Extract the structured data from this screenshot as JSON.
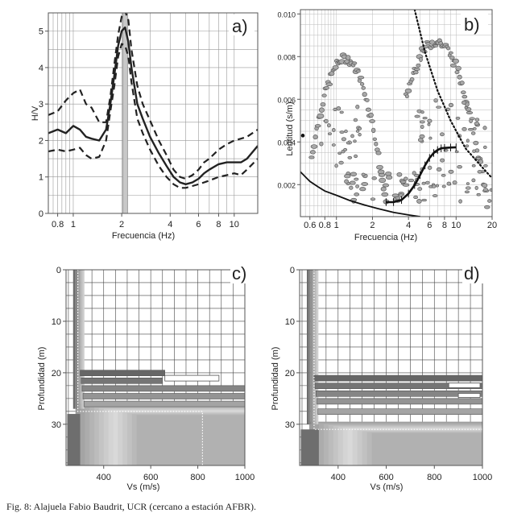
{
  "caption": "Fig. 8: Alajuela Fabio Baudrit, UCR (cercano a estación AFBR).",
  "colors": {
    "curve": "#222222",
    "speckle_fill": "#a8a8a8",
    "speckle_edge": "#5a5a5a",
    "profile_dark": "#6e6e6e",
    "profile_light": "#d8d8d8"
  },
  "chart_data": [
    {
      "panel": "a)",
      "type": "line",
      "xlabel": "Frecuencia (Hz)",
      "ylabel": "H/V",
      "xscale": "log",
      "xlim": [
        0.7,
        14
      ],
      "ylim": [
        0,
        5.5
      ],
      "xticks": [
        0.8,
        1,
        2,
        4,
        6,
        8,
        10
      ],
      "xtick_labels": [
        "0.8",
        "1",
        "2",
        "4",
        "6",
        "8",
        "10"
      ],
      "yticks": [
        0,
        1,
        2,
        3,
        4,
        5
      ],
      "ytick_labels": [
        "0",
        "1",
        "2",
        "3",
        "4",
        "5"
      ],
      "grid": true,
      "peak_frequency": 2.1,
      "series": [
        {
          "style": "solid",
          "x": [
            0.7,
            0.8,
            0.9,
            1.0,
            1.1,
            1.2,
            1.3,
            1.45,
            1.6,
            1.7,
            1.8,
            1.9,
            2.0,
            2.1,
            2.2,
            2.3,
            2.5,
            2.7,
            3.0,
            3.4,
            3.8,
            4.2,
            4.6,
            5.0,
            5.5,
            6.0,
            6.5,
            7.0,
            8.0,
            9.0,
            10.0,
            11.0,
            12.0,
            14.0
          ],
          "y": [
            2.2,
            2.3,
            2.2,
            2.4,
            2.3,
            2.1,
            2.05,
            2.0,
            2.3,
            3.0,
            3.8,
            4.6,
            5.0,
            5.1,
            4.7,
            4.0,
            3.0,
            2.6,
            2.1,
            1.65,
            1.3,
            1.0,
            0.85,
            0.8,
            0.85,
            0.95,
            1.1,
            1.2,
            1.35,
            1.4,
            1.4,
            1.4,
            1.5,
            1.85
          ]
        },
        {
          "style": "dashed",
          "x": [
            0.7,
            0.8,
            0.9,
            1.0,
            1.1,
            1.2,
            1.3,
            1.45,
            1.6,
            1.7,
            1.8,
            1.9,
            2.0,
            2.1,
            2.2,
            2.3,
            2.5,
            2.7,
            3.0,
            3.4,
            3.8,
            4.2,
            4.6,
            5.0,
            5.5,
            6.0,
            6.5,
            7.0,
            8.0,
            9.0,
            10.0,
            11.0,
            12.0,
            14.0
          ],
          "y": [
            2.7,
            2.8,
            3.1,
            3.3,
            3.4,
            3.0,
            2.9,
            2.5,
            2.5,
            3.2,
            4.1,
            4.9,
            5.4,
            5.55,
            5.3,
            4.5,
            3.5,
            3.0,
            2.55,
            2.0,
            1.6,
            1.2,
            1.0,
            0.95,
            1.05,
            1.2,
            1.4,
            1.5,
            1.75,
            1.9,
            2.0,
            2.05,
            2.1,
            2.3
          ]
        },
        {
          "style": "dashed",
          "x": [
            0.7,
            0.8,
            0.9,
            1.0,
            1.1,
            1.2,
            1.3,
            1.45,
            1.6,
            1.7,
            1.8,
            1.9,
            2.0,
            2.1,
            2.2,
            2.3,
            2.5,
            2.7,
            3.0,
            3.4,
            3.8,
            4.2,
            4.6,
            5.0,
            5.5,
            6.0,
            6.5,
            7.0,
            8.0,
            9.0,
            10.0,
            11.0,
            12.0,
            14.0
          ],
          "y": [
            1.7,
            1.75,
            1.7,
            1.75,
            1.8,
            1.6,
            1.5,
            1.55,
            2.0,
            2.8,
            3.5,
            4.3,
            4.65,
            4.6,
            4.3,
            3.6,
            2.6,
            2.2,
            1.75,
            1.3,
            1.0,
            0.8,
            0.7,
            0.7,
            0.75,
            0.8,
            0.85,
            0.9,
            1.0,
            1.05,
            1.1,
            1.05,
            1.2,
            1.5
          ]
        }
      ]
    },
    {
      "panel": "b)",
      "type": "scatter",
      "xlabel": "Frecuencia (Hz)",
      "ylabel": "Lentitud (s/m)",
      "xscale": "log",
      "xlim": [
        0.5,
        20
      ],
      "ylim": [
        0.0005,
        0.0102
      ],
      "xticks": [
        0.6,
        0.8,
        1,
        2,
        4,
        6,
        8,
        10,
        20
      ],
      "xtick_labels": [
        "0.6",
        "0.8",
        "1",
        "2",
        "4",
        "6",
        "8",
        "10",
        "20"
      ],
      "yticks": [
        0.002,
        0.004,
        0.006,
        0.008,
        0.01
      ],
      "ytick_labels": [
        "0.002",
        "0.004",
        "0.006",
        "0.008",
        "0.010"
      ],
      "grid": true,
      "marker_point": {
        "x": 0.5,
        "y": 0.0043
      },
      "dispersion_curve": {
        "x": [
          2.6,
          3.0,
          3.5,
          4.0,
          4.5,
          5.0,
          5.5,
          6.0,
          6.5,
          7.0,
          7.5,
          8.0,
          9.0,
          10.0
        ],
        "y": [
          0.00118,
          0.00118,
          0.00128,
          0.00158,
          0.00198,
          0.00245,
          0.0029,
          0.00325,
          0.00348,
          0.00362,
          0.0037,
          0.00372,
          0.00374,
          0.00375
        ]
      },
      "aliasing_limit_curve": {
        "x": [
          0.5,
          0.6,
          0.7,
          0.8,
          1.0,
          1.3,
          1.7,
          2.2,
          3.0,
          4.0,
          5.0
        ],
        "y": [
          0.0026,
          0.00215,
          0.0019,
          0.0017,
          0.0015,
          0.00125,
          0.00105,
          0.00088,
          0.0007,
          0.00058,
          0.0005
        ]
      },
      "resolution_limit_curve": {
        "style": "dotted",
        "x": [
          4.5,
          5.5,
          7.0,
          9.0,
          12.0,
          16.0,
          20.0
        ],
        "y": [
          0.0102,
          0.0082,
          0.0064,
          0.005,
          0.0037,
          0.0029,
          0.0023
        ]
      }
    },
    {
      "panel": "c)",
      "type": "heatmap",
      "xlabel": "Vs (m/s)",
      "ylabel": "Profundidad (m)",
      "xlim": [
        240,
        1000
      ],
      "ylim": [
        0,
        38
      ],
      "xticks": [
        400,
        600,
        800,
        1000
      ],
      "xtick_labels": [
        "400",
        "600",
        "800",
        "1000"
      ],
      "yticks": [
        0,
        10,
        20,
        30
      ],
      "ytick_labels": [
        "0",
        "10",
        "20",
        "30"
      ],
      "grid": true,
      "best_model_dotted": {
        "vs": [
          290,
          290,
          820,
          820
        ],
        "depth": [
          0,
          27.5,
          27.5,
          38
        ]
      }
    },
    {
      "panel": "d)",
      "type": "heatmap",
      "xlabel": "Vs (m/s)",
      "ylabel": "Profundidad (m)",
      "xlim": [
        240,
        1000
      ],
      "ylim": [
        0,
        38
      ],
      "xticks": [
        400,
        600,
        800,
        1000
      ],
      "xtick_labels": [
        "400",
        "600",
        "800",
        "1000"
      ],
      "yticks": [
        0,
        10,
        20,
        30
      ],
      "ytick_labels": [
        "0",
        "10",
        "20",
        "30"
      ],
      "grid": true,
      "best_model_dotted": {
        "vs": [
          300,
          300,
          1000
        ],
        "depth": [
          0,
          31,
          31
        ]
      }
    }
  ]
}
